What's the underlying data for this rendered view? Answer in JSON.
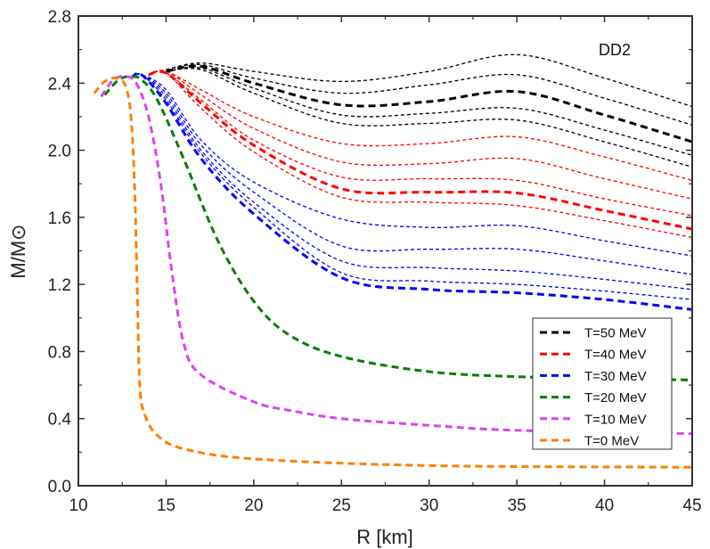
{
  "chart_data": {
    "type": "line",
    "annotation": "DD2",
    "xlabel": "R [km]",
    "ylabel": "M/M⊙",
    "xlim": [
      10,
      45
    ],
    "ylim": [
      0.0,
      2.8
    ],
    "xticks": [
      "10",
      "15",
      "20",
      "25",
      "30",
      "35",
      "40",
      "45"
    ],
    "yticks": [
      "0.0",
      "0.4",
      "0.8",
      "1.2",
      "1.6",
      "2.0",
      "2.4",
      "2.8"
    ],
    "grid": false,
    "legend_position": "bottom-right",
    "legend": [
      {
        "label": "T=50 MeV",
        "color": "#000000"
      },
      {
        "label": "T=40 MeV",
        "color": "#ff0000"
      },
      {
        "label": "T=30 MeV",
        "color": "#0000ff"
      },
      {
        "label": "T=20 MeV",
        "color": "#008000"
      },
      {
        "label": "T=10 MeV",
        "color": "#dd44ee"
      },
      {
        "label": "T=0 MeV",
        "color": "#ff8000"
      }
    ],
    "series": [
      {
        "color": "#000000",
        "style": "thin",
        "points": [
          [
            15,
            2.48
          ],
          [
            17,
            2.52
          ],
          [
            20,
            2.47
          ],
          [
            25,
            2.41
          ],
          [
            30,
            2.47
          ],
          [
            35,
            2.57
          ],
          [
            40,
            2.43
          ],
          [
            45,
            2.26
          ]
        ]
      },
      {
        "color": "#000000",
        "style": "thin",
        "points": [
          [
            15,
            2.48
          ],
          [
            17,
            2.51
          ],
          [
            20,
            2.43
          ],
          [
            25,
            2.34
          ],
          [
            30,
            2.39
          ],
          [
            35,
            2.45
          ],
          [
            40,
            2.31
          ],
          [
            45,
            2.15
          ]
        ]
      },
      {
        "color": "#000000",
        "style": "thin",
        "points": [
          [
            15,
            2.47
          ],
          [
            17,
            2.49
          ],
          [
            20,
            2.37
          ],
          [
            25,
            2.21
          ],
          [
            30,
            2.22
          ],
          [
            35,
            2.25
          ],
          [
            40,
            2.12
          ],
          [
            45,
            1.97
          ]
        ]
      },
      {
        "color": "#000000",
        "style": "thin",
        "points": [
          [
            15,
            2.47
          ],
          [
            17,
            2.48
          ],
          [
            20,
            2.34
          ],
          [
            25,
            2.16
          ],
          [
            30,
            2.16
          ],
          [
            35,
            2.18
          ],
          [
            40,
            2.05
          ],
          [
            45,
            1.9
          ]
        ]
      },
      {
        "color": "#ff0000",
        "style": "thin",
        "points": [
          [
            14,
            2.45
          ],
          [
            15,
            2.47
          ],
          [
            17,
            2.36
          ],
          [
            20,
            2.2
          ],
          [
            25,
            2.04
          ],
          [
            30,
            2.04
          ],
          [
            35,
            2.08
          ],
          [
            40,
            1.96
          ],
          [
            45,
            1.82
          ]
        ]
      },
      {
        "color": "#ff0000",
        "style": "thin",
        "points": [
          [
            14,
            2.45
          ],
          [
            15,
            2.47
          ],
          [
            17,
            2.33
          ],
          [
            20,
            2.13
          ],
          [
            25,
            1.93
          ],
          [
            30,
            1.92
          ],
          [
            35,
            1.95
          ],
          [
            40,
            1.83
          ],
          [
            45,
            1.71
          ]
        ]
      },
      {
        "color": "#ff0000",
        "style": "thin",
        "points": [
          [
            14,
            2.45
          ],
          [
            15,
            2.46
          ],
          [
            17,
            2.3
          ],
          [
            20,
            2.06
          ],
          [
            25,
            1.84
          ],
          [
            30,
            1.83
          ],
          [
            35,
            1.82
          ],
          [
            40,
            1.71
          ],
          [
            45,
            1.61
          ]
        ]
      },
      {
        "color": "#ff0000",
        "style": "thin",
        "points": [
          [
            14,
            2.45
          ],
          [
            15,
            2.46
          ],
          [
            17,
            2.25
          ],
          [
            20,
            1.99
          ],
          [
            25,
            1.72
          ],
          [
            30,
            1.69
          ],
          [
            35,
            1.67
          ],
          [
            40,
            1.58
          ],
          [
            45,
            1.48
          ]
        ]
      },
      {
        "color": "#0000ff",
        "style": "thin",
        "points": [
          [
            13,
            2.43
          ],
          [
            13.6,
            2.45
          ],
          [
            15,
            2.36
          ],
          [
            17,
            2.06
          ],
          [
            20,
            1.81
          ],
          [
            25,
            1.59
          ],
          [
            30,
            1.54
          ],
          [
            35,
            1.55
          ],
          [
            40,
            1.46
          ],
          [
            45,
            1.37
          ]
        ]
      },
      {
        "color": "#0000ff",
        "style": "thin",
        "points": [
          [
            13,
            2.43
          ],
          [
            13.6,
            2.45
          ],
          [
            15,
            2.34
          ],
          [
            17,
            2.03
          ],
          [
            20,
            1.75
          ],
          [
            25,
            1.43
          ],
          [
            30,
            1.41
          ],
          [
            35,
            1.41
          ],
          [
            40,
            1.34
          ],
          [
            45,
            1.26
          ]
        ]
      },
      {
        "color": "#0000ff",
        "style": "thin",
        "points": [
          [
            13,
            2.43
          ],
          [
            13.6,
            2.45
          ],
          [
            15,
            2.32
          ],
          [
            17,
            2.0
          ],
          [
            20,
            1.69
          ],
          [
            25,
            1.34
          ],
          [
            30,
            1.3
          ],
          [
            35,
            1.28
          ],
          [
            40,
            1.23
          ],
          [
            45,
            1.17
          ]
        ]
      },
      {
        "color": "#0000ff",
        "style": "thin",
        "points": [
          [
            13,
            2.43
          ],
          [
            13.6,
            2.45
          ],
          [
            15,
            2.3
          ],
          [
            17,
            1.98
          ],
          [
            20,
            1.66
          ],
          [
            25,
            1.27
          ],
          [
            30,
            1.22
          ],
          [
            35,
            1.2
          ],
          [
            40,
            1.16
          ],
          [
            45,
            1.11
          ]
        ]
      },
      {
        "name": "T=50 MeV",
        "color": "#000000",
        "style": "thick",
        "points": [
          [
            15,
            2.47
          ],
          [
            17,
            2.5
          ],
          [
            20,
            2.4
          ],
          [
            25,
            2.27
          ],
          [
            30,
            2.29
          ],
          [
            35,
            2.35
          ],
          [
            40,
            2.21
          ],
          [
            45,
            2.05
          ]
        ]
      },
      {
        "name": "T=40 MeV",
        "color": "#ff0000",
        "style": "thick",
        "points": [
          [
            14,
            2.45
          ],
          [
            15,
            2.46
          ],
          [
            17,
            2.28
          ],
          [
            20,
            2.03
          ],
          [
            25,
            1.77
          ],
          [
            30,
            1.75
          ],
          [
            35,
            1.745
          ],
          [
            40,
            1.64
          ],
          [
            45,
            1.53
          ]
        ]
      },
      {
        "name": "T=30 MeV",
        "color": "#0000ff",
        "style": "thick",
        "points": [
          [
            13,
            2.43
          ],
          [
            13.6,
            2.45
          ],
          [
            15,
            2.28
          ],
          [
            17,
            1.95
          ],
          [
            20,
            1.62
          ],
          [
            25,
            1.24
          ],
          [
            30,
            1.17
          ],
          [
            35,
            1.15
          ],
          [
            40,
            1.11
          ],
          [
            45,
            1.05
          ]
        ]
      },
      {
        "name": "T=20 MeV",
        "color": "#008000",
        "style": "thick",
        "points": [
          [
            11.5,
            2.33
          ],
          [
            12.3,
            2.42
          ],
          [
            13,
            2.44
          ],
          [
            13.6,
            2.42
          ],
          [
            14.5,
            2.3
          ],
          [
            16,
            1.95
          ],
          [
            18,
            1.45
          ],
          [
            20,
            1.1
          ],
          [
            22,
            0.9
          ],
          [
            25,
            0.77
          ],
          [
            30,
            0.68
          ],
          [
            35,
            0.65
          ],
          [
            40,
            0.64
          ],
          [
            45,
            0.63
          ]
        ]
      },
      {
        "name": "T=10 MeV",
        "color": "#dd44ee",
        "style": "thick",
        "points": [
          [
            11.3,
            2.32
          ],
          [
            12,
            2.42
          ],
          [
            12.7,
            2.44
          ],
          [
            13.3,
            2.4
          ],
          [
            14,
            2.2
          ],
          [
            14.7,
            1.8
          ],
          [
            15.3,
            1.3
          ],
          [
            16,
            0.85
          ],
          [
            17,
            0.66
          ],
          [
            20,
            0.5
          ],
          [
            22,
            0.45
          ],
          [
            25,
            0.4
          ],
          [
            30,
            0.36
          ],
          [
            35,
            0.33
          ],
          [
            45,
            0.31
          ]
        ]
      },
      {
        "name": "T=0 MeV",
        "color": "#ff8000",
        "style": "thick",
        "points": [
          [
            10.9,
            2.34
          ],
          [
            11.5,
            2.41
          ],
          [
            12.2,
            2.43
          ],
          [
            12.7,
            2.38
          ],
          [
            13,
            2.2
          ],
          [
            13.2,
            1.8
          ],
          [
            13.35,
            1.2
          ],
          [
            13.5,
            0.6
          ],
          [
            13.8,
            0.42
          ],
          [
            14.5,
            0.3
          ],
          [
            16,
            0.22
          ],
          [
            20,
            0.16
          ],
          [
            30,
            0.12
          ],
          [
            45,
            0.11
          ]
        ]
      }
    ]
  }
}
